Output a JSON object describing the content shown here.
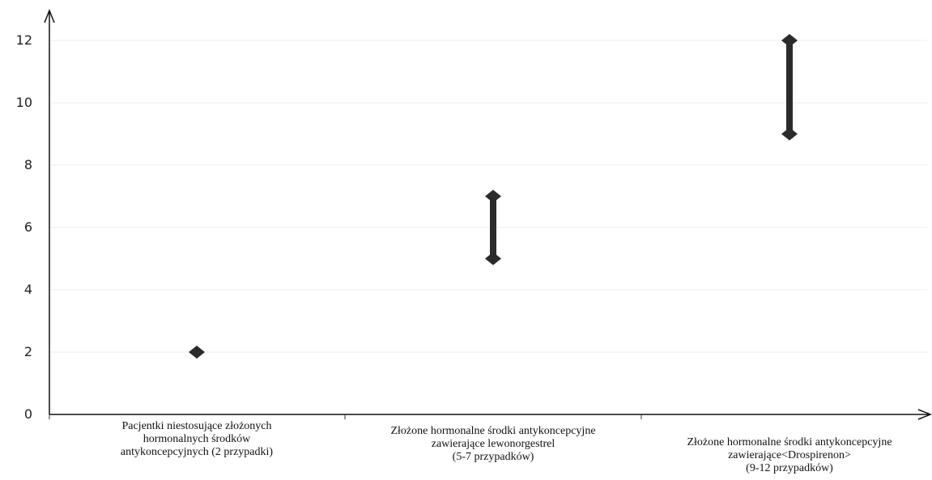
{
  "chart_data": {
    "type": "range",
    "categories": [
      [
        "Pacjentki niestosujące złożonych",
        "hormonalnych środków",
        "antykoncepcyjnych (2 przypadki)"
      ],
      [
        "Złożone hormonalne środki antykoncepcyjne",
        "zawierające lewonorgestrel",
        "(5-7 przypadków)"
      ],
      [
        "Złożone hormonalne środki antykoncepcyjne",
        "zawierające<Drospirenon>",
        "(9-12 przypadków)"
      ]
    ],
    "ranges": [
      {
        "low": 2,
        "high": 2
      },
      {
        "low": 5,
        "high": 7
      },
      {
        "low": 9,
        "high": 12
      }
    ],
    "ylim": [
      0,
      12
    ],
    "yticks": [
      0,
      2,
      4,
      6,
      8,
      10,
      12
    ],
    "grid": true,
    "legend": "none",
    "title": "",
    "xlabel": "",
    "ylabel": "",
    "colors": {
      "marker": "#2b2b2b",
      "grid": "#ececec",
      "axis": "#111111"
    }
  }
}
